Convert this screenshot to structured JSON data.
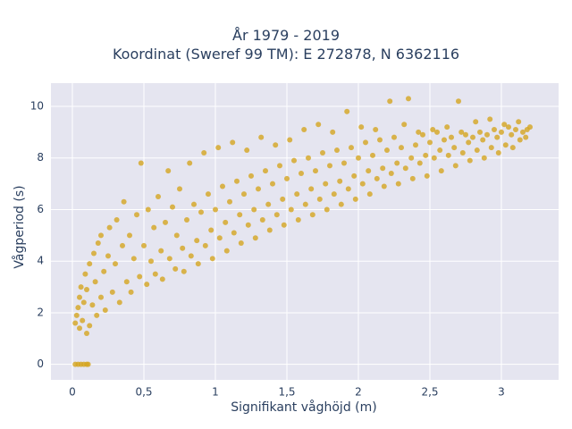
{
  "chart_data": {
    "type": "scatter",
    "title_lines": [
      "År 1979 - 2019",
      "Koordinat (Sweref 99 TM): E 272878, N 6362116"
    ],
    "xlabel": "Signifikant våghöjd (m)",
    "ylabel": "Vågperiod (s)",
    "xlim": [
      -0.15,
      3.4
    ],
    "ylim": [
      -0.6,
      10.9
    ],
    "xticks": [
      0,
      0.5,
      1,
      1.5,
      2,
      2.5,
      3
    ],
    "xtick_labels": [
      "0",
      "0,5",
      "1",
      "1,5",
      "2",
      "2,5",
      "3"
    ],
    "yticks": [
      0,
      2,
      4,
      6,
      8,
      10
    ],
    "ytick_labels": [
      "0",
      "2",
      "4",
      "6",
      "8",
      "10"
    ],
    "grid": true,
    "marker_color": "#D4A520",
    "background_color": "#E5E5F0",
    "series": [
      {
        "points": [
          [
            0.02,
            1.6
          ],
          [
            0.03,
            1.9
          ],
          [
            0.04,
            2.2
          ],
          [
            0.05,
            2.6
          ],
          [
            0.05,
            1.4
          ],
          [
            0.06,
            3.0
          ],
          [
            0.07,
            1.7
          ],
          [
            0.08,
            2.4
          ],
          [
            0.09,
            3.5
          ],
          [
            0.1,
            1.2
          ],
          [
            0.1,
            2.9
          ],
          [
            0.12,
            3.9
          ],
          [
            0.12,
            1.5
          ],
          [
            0.14,
            2.3
          ],
          [
            0.15,
            4.3
          ],
          [
            0.16,
            3.2
          ],
          [
            0.17,
            1.9
          ],
          [
            0.18,
            4.7
          ],
          [
            0.2,
            2.6
          ],
          [
            0.2,
            5.0
          ],
          [
            0.22,
            3.6
          ],
          [
            0.23,
            2.1
          ],
          [
            0.25,
            4.2
          ],
          [
            0.26,
            5.3
          ],
          [
            0.28,
            2.8
          ],
          [
            0.3,
            3.9
          ],
          [
            0.31,
            5.6
          ],
          [
            0.33,
            2.4
          ],
          [
            0.35,
            4.6
          ],
          [
            0.36,
            6.3
          ],
          [
            0.38,
            3.2
          ],
          [
            0.4,
            5.0
          ],
          [
            0.41,
            2.8
          ],
          [
            0.43,
            4.1
          ],
          [
            0.45,
            5.8
          ],
          [
            0.47,
            3.4
          ],
          [
            0.48,
            7.8
          ],
          [
            0.5,
            4.6
          ],
          [
            0.52,
            3.1
          ],
          [
            0.53,
            6.0
          ],
          [
            0.55,
            4.0
          ],
          [
            0.57,
            5.3
          ],
          [
            0.58,
            3.5
          ],
          [
            0.6,
            6.5
          ],
          [
            0.62,
            4.4
          ],
          [
            0.63,
            3.3
          ],
          [
            0.65,
            5.5
          ],
          [
            0.67,
            7.5
          ],
          [
            0.68,
            4.1
          ],
          [
            0.7,
            6.1
          ],
          [
            0.72,
            3.7
          ],
          [
            0.73,
            5.0
          ],
          [
            0.75,
            6.8
          ],
          [
            0.77,
            4.5
          ],
          [
            0.78,
            3.6
          ],
          [
            0.8,
            5.6
          ],
          [
            0.82,
            7.8
          ],
          [
            0.83,
            4.2
          ],
          [
            0.85,
            6.2
          ],
          [
            0.87,
            4.8
          ],
          [
            0.88,
            3.9
          ],
          [
            0.9,
            5.9
          ],
          [
            0.92,
            8.2
          ],
          [
            0.93,
            4.6
          ],
          [
            0.95,
            6.6
          ],
          [
            0.97,
            5.2
          ],
          [
            0.98,
            4.1
          ],
          [
            1.0,
            6.0
          ],
          [
            1.02,
            8.4
          ],
          [
            1.03,
            4.9
          ],
          [
            1.05,
            6.9
          ],
          [
            1.07,
            5.5
          ],
          [
            1.08,
            4.4
          ],
          [
            1.1,
            6.3
          ],
          [
            1.12,
            8.6
          ],
          [
            1.13,
            5.1
          ],
          [
            1.15,
            7.1
          ],
          [
            1.17,
            5.8
          ],
          [
            1.18,
            4.7
          ],
          [
            1.2,
            6.6
          ],
          [
            1.22,
            8.3
          ],
          [
            1.23,
            5.4
          ],
          [
            1.25,
            7.3
          ],
          [
            1.27,
            6.0
          ],
          [
            1.28,
            4.9
          ],
          [
            1.3,
            6.8
          ],
          [
            1.32,
            8.8
          ],
          [
            1.33,
            5.6
          ],
          [
            1.35,
            7.5
          ],
          [
            1.37,
            6.2
          ],
          [
            1.38,
            5.2
          ],
          [
            1.4,
            7.0
          ],
          [
            1.42,
            8.5
          ],
          [
            1.43,
            5.8
          ],
          [
            1.45,
            7.7
          ],
          [
            1.47,
            6.4
          ],
          [
            1.48,
            5.4
          ],
          [
            1.5,
            7.2
          ],
          [
            1.52,
            8.7
          ],
          [
            1.53,
            6.0
          ],
          [
            1.55,
            7.9
          ],
          [
            1.57,
            6.6
          ],
          [
            1.58,
            5.6
          ],
          [
            1.6,
            7.4
          ],
          [
            1.62,
            9.1
          ],
          [
            1.63,
            6.2
          ],
          [
            1.65,
            8.0
          ],
          [
            1.67,
            6.8
          ],
          [
            1.68,
            5.8
          ],
          [
            1.7,
            7.5
          ],
          [
            1.72,
            9.3
          ],
          [
            1.73,
            6.4
          ],
          [
            1.75,
            8.2
          ],
          [
            1.77,
            7.0
          ],
          [
            1.78,
            6.0
          ],
          [
            1.8,
            7.7
          ],
          [
            1.82,
            9.0
          ],
          [
            1.83,
            6.6
          ],
          [
            1.85,
            8.3
          ],
          [
            1.87,
            7.1
          ],
          [
            1.88,
            6.2
          ],
          [
            1.9,
            7.8
          ],
          [
            1.92,
            9.8
          ],
          [
            1.93,
            6.8
          ],
          [
            1.95,
            8.4
          ],
          [
            1.97,
            7.3
          ],
          [
            1.98,
            6.4
          ],
          [
            2.0,
            8.0
          ],
          [
            2.02,
            9.2
          ],
          [
            2.03,
            7.0
          ],
          [
            2.05,
            8.6
          ],
          [
            2.07,
            7.5
          ],
          [
            2.08,
            6.6
          ],
          [
            2.1,
            8.1
          ],
          [
            2.12,
            9.1
          ],
          [
            2.13,
            7.2
          ],
          [
            2.15,
            8.7
          ],
          [
            2.17,
            7.6
          ],
          [
            2.18,
            6.9
          ],
          [
            2.2,
            8.3
          ],
          [
            2.22,
            10.2
          ],
          [
            2.23,
            7.4
          ],
          [
            2.25,
            8.8
          ],
          [
            2.27,
            7.8
          ],
          [
            2.28,
            7.0
          ],
          [
            2.3,
            8.4
          ],
          [
            2.32,
            9.3
          ],
          [
            2.33,
            7.6
          ],
          [
            2.35,
            10.3
          ],
          [
            2.37,
            8.0
          ],
          [
            2.38,
            7.2
          ],
          [
            2.4,
            8.5
          ],
          [
            2.42,
            9.0
          ],
          [
            2.43,
            7.8
          ],
          [
            2.45,
            8.9
          ],
          [
            2.47,
            8.1
          ],
          [
            2.48,
            7.3
          ],
          [
            2.5,
            8.6
          ],
          [
            2.52,
            9.1
          ],
          [
            2.53,
            8.0
          ],
          [
            2.55,
            9.0
          ],
          [
            2.57,
            8.3
          ],
          [
            2.58,
            7.5
          ],
          [
            2.6,
            8.7
          ],
          [
            2.62,
            9.2
          ],
          [
            2.63,
            8.1
          ],
          [
            2.65,
            8.8
          ],
          [
            2.67,
            8.4
          ],
          [
            2.68,
            7.7
          ],
          [
            2.7,
            10.2
          ],
          [
            2.72,
            9.0
          ],
          [
            2.73,
            8.2
          ],
          [
            2.75,
            8.9
          ],
          [
            2.77,
            8.6
          ],
          [
            2.78,
            7.9
          ],
          [
            2.8,
            8.8
          ],
          [
            2.82,
            9.4
          ],
          [
            2.83,
            8.3
          ],
          [
            2.85,
            9.0
          ],
          [
            2.87,
            8.7
          ],
          [
            2.88,
            8.0
          ],
          [
            2.9,
            8.9
          ],
          [
            2.92,
            9.5
          ],
          [
            2.93,
            8.4
          ],
          [
            2.95,
            9.1
          ],
          [
            2.97,
            8.8
          ],
          [
            2.98,
            8.2
          ],
          [
            3.0,
            9.0
          ],
          [
            3.02,
            9.3
          ],
          [
            3.03,
            8.5
          ],
          [
            3.05,
            9.2
          ],
          [
            3.07,
            8.9
          ],
          [
            3.08,
            8.4
          ],
          [
            3.1,
            9.1
          ],
          [
            3.12,
            9.4
          ],
          [
            3.15,
            9.0
          ],
          [
            3.17,
            8.8
          ],
          [
            3.2,
            9.2
          ],
          [
            3.18,
            9.1
          ],
          [
            3.13,
            8.7
          ],
          [
            0.02,
            0.0
          ],
          [
            0.04,
            0.0
          ],
          [
            0.06,
            0.0
          ],
          [
            0.08,
            0.0
          ],
          [
            0.1,
            0.0
          ],
          [
            0.11,
            0.0
          ]
        ]
      }
    ]
  }
}
